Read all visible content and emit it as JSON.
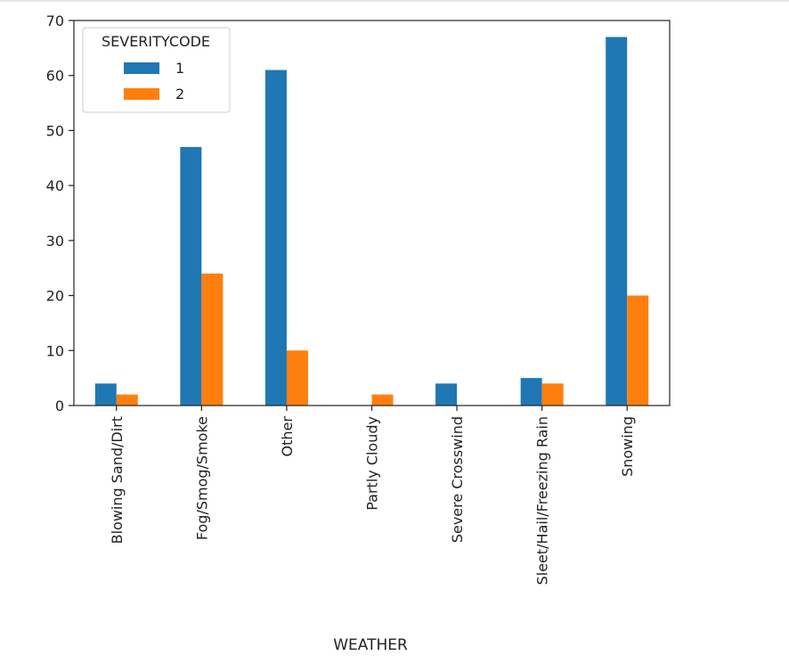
{
  "chart_data": {
    "type": "bar",
    "xlabel": "WEATHER",
    "ylabel": "",
    "ylim": [
      0,
      70
    ],
    "yticks": [
      0,
      10,
      20,
      30,
      40,
      50,
      60,
      70
    ],
    "categories": [
      "Blowing Sand/Dirt",
      "Fog/Smog/Smoke",
      "Other",
      "Partly Cloudy",
      "Severe Crosswind",
      "Sleet/Hail/Freezing Rain",
      "Snowing"
    ],
    "legend": {
      "title": "SEVERITYCODE",
      "position": "top-left"
    },
    "grid": false,
    "series": [
      {
        "name": "1",
        "color": "#1f77b4",
        "values": [
          4,
          47,
          61,
          0,
          4,
          5,
          67
        ]
      },
      {
        "name": "2",
        "color": "#ff7f0e",
        "values": [
          2,
          24,
          10,
          2,
          0,
          4,
          20
        ]
      }
    ]
  }
}
